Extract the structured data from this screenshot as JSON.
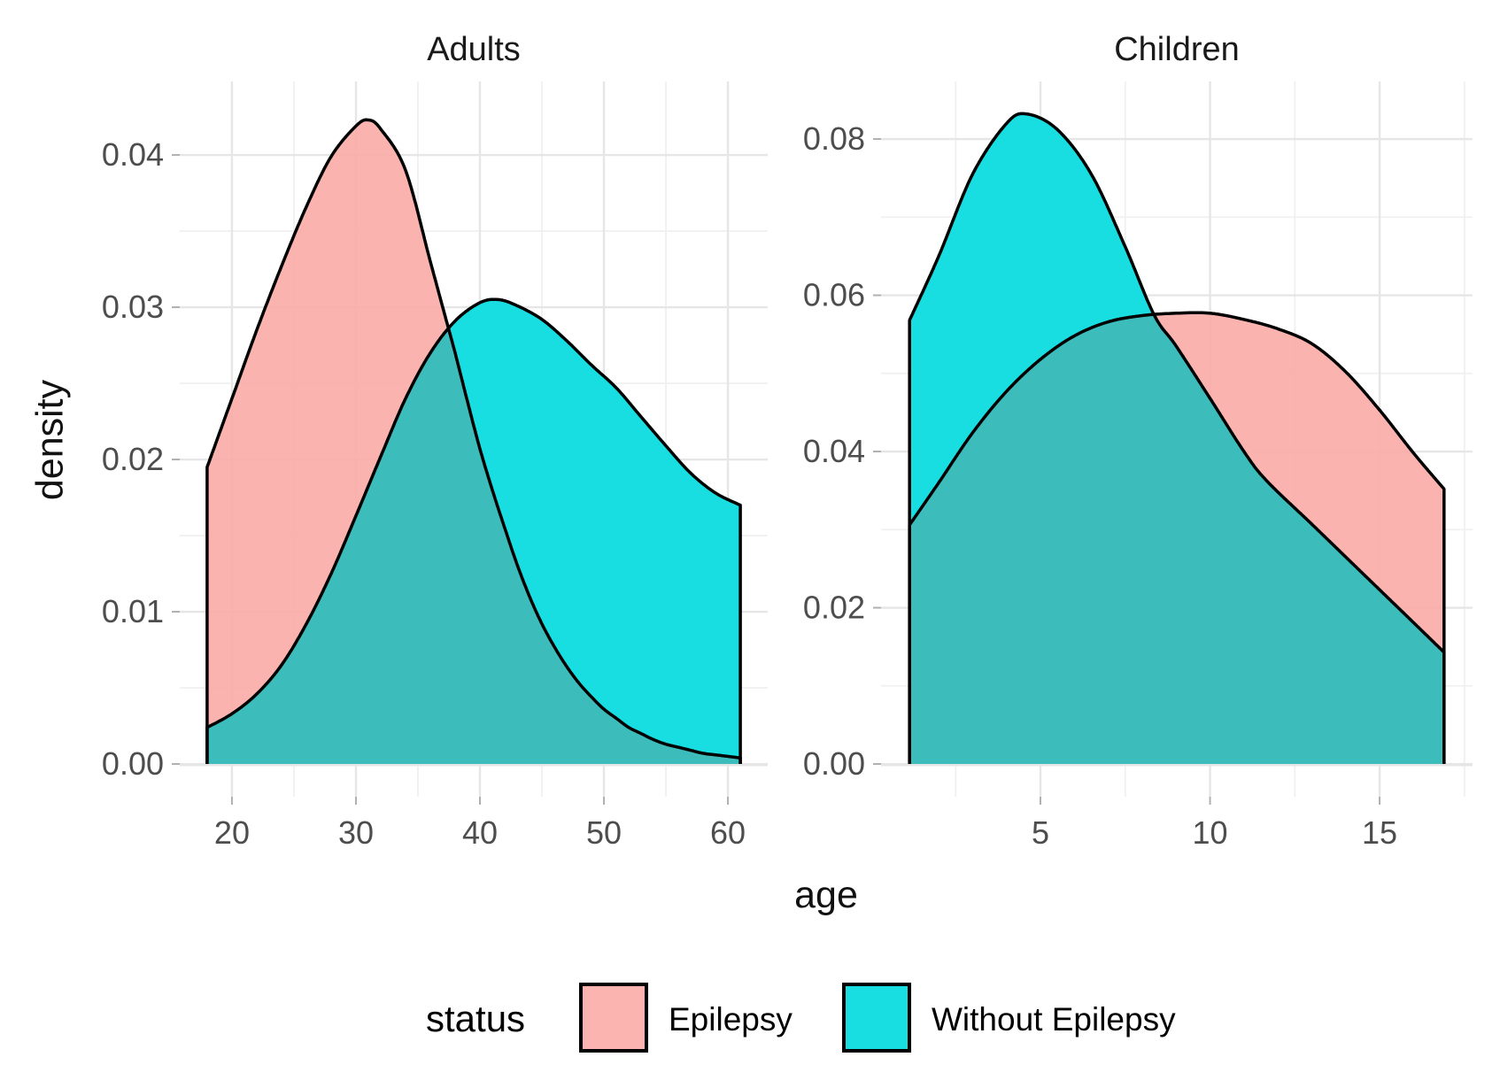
{
  "chart_data": {
    "type": "area",
    "subtype": "faceted-density-plot",
    "xlabel": "age",
    "ylabel": "density",
    "grid": true,
    "legend": {
      "title": "status",
      "position": "bottom",
      "entries": [
        {
          "label": "Epilepsy",
          "fill": "#FBB4AF"
        },
        {
          "label": "Without Epilepsy",
          "fill": "#18DEE2"
        }
      ]
    },
    "style": {
      "fill_epilepsy": "#FAADA8",
      "fill_epilepsy_opacity": 0.92,
      "fill_without": "#18DEE2",
      "fill_overlap": "#41B8B8",
      "fill_overlap_opacity": 0.92,
      "curve_stroke": "#000000",
      "curve_stroke_width": 3.5,
      "grid_major": "#E6E6E6",
      "grid_minor": "#F0F0F0",
      "tick_mark": "#B0B0B0",
      "tick_label_color": "#4D4D4D",
      "background": "#FFFFFF"
    },
    "panels": [
      {
        "title": "Adults",
        "xlim": [
          15.79,
          63.21
        ],
        "ylim": [
          -0.00215,
          0.04483
        ],
        "x_major_ticks": [
          20,
          30,
          40,
          50,
          60
        ],
        "x_tick_labels": [
          "20",
          "30",
          "40",
          "50",
          "60"
        ],
        "x_minor_ticks": [
          25,
          35,
          45,
          55
        ],
        "y_major_ticks": [
          0,
          0.01,
          0.02,
          0.03,
          0.04
        ],
        "y_tick_labels": [
          "0.00",
          "0.01",
          "0.02",
          "0.03",
          "0.04"
        ],
        "y_minor_ticks": [
          0.005,
          0.015,
          0.025,
          0.035
        ],
        "series": [
          {
            "name": "Epilepsy",
            "x": [
              18,
              20,
              22,
              24,
              26,
              28,
              30,
              31,
              32,
              34,
              36,
              37.4,
              38,
              39,
              40,
              41,
              42,
              43,
              44,
              45,
              46,
              47,
              48,
              49,
              50,
              51,
              52,
              53,
              54,
              55,
              56,
              57,
              58,
              59,
              60,
              61
            ],
            "density": [
              0.0195,
              0.024,
              0.0285,
              0.0327,
              0.0366,
              0.0399,
              0.0419,
              0.0423,
              0.0417,
              0.039,
              0.033,
              0.0288,
              0.027,
              0.0238,
              0.0207,
              0.018,
              0.0155,
              0.0131,
              0.011,
              0.0092,
              0.0077,
              0.0064,
              0.0053,
              0.0044,
              0.0036,
              0.003,
              0.0024,
              0.002,
              0.0016,
              0.0013,
              0.0011,
              0.0009,
              0.0007,
              0.0006,
              0.0005,
              0.0004
            ]
          },
          {
            "name": "Without Epilepsy",
            "x": [
              18,
              20,
              22,
              24,
              26,
              28,
              30,
              32,
              34,
              36,
              38,
              40,
              41.5,
              43,
              45,
              47,
              49,
              51,
              53,
              55,
              57,
              59,
              61
            ],
            "density": [
              0.0024,
              0.0033,
              0.0046,
              0.0065,
              0.0092,
              0.0125,
              0.0163,
              0.0202,
              0.024,
              0.027,
              0.0291,
              0.0303,
              0.0305,
              0.0301,
              0.0292,
              0.0278,
              0.0262,
              0.0247,
              0.0228,
              0.0209,
              0.0191,
              0.0178,
              0.017
            ]
          }
        ]
      },
      {
        "title": "Children",
        "xlim": [
          0.3,
          17.74
        ],
        "ylim": [
          -0.00419,
          0.08737
        ],
        "x_major_ticks": [
          5,
          10,
          15
        ],
        "x_tick_labels": [
          "5",
          "10",
          "15"
        ],
        "x_minor_ticks": [
          2.5,
          7.5,
          12.5,
          17.5
        ],
        "y_major_ticks": [
          0,
          0.02,
          0.04,
          0.06,
          0.08
        ],
        "y_tick_labels": [
          "0.00",
          "0.02",
          "0.04",
          "0.06",
          "0.08"
        ],
        "y_minor_ticks": [
          0.01,
          0.03,
          0.05,
          0.07
        ],
        "series": [
          {
            "name": "Epilepsy",
            "x": [
              1.14,
              2,
              3,
              4,
              5,
              6,
              7,
              8,
              9,
              10,
              11,
              12,
              13,
              14,
              15,
              16,
              16.9
            ],
            "density": [
              0.0306,
              0.036,
              0.0424,
              0.0477,
              0.0518,
              0.0548,
              0.0566,
              0.0574,
              0.0577,
              0.0577,
              0.0569,
              0.0557,
              0.0538,
              0.0502,
              0.0453,
              0.0398,
              0.0352
            ]
          },
          {
            "name": "Without Epilepsy",
            "x": [
              1.14,
              2,
              3,
              4,
              4.6,
              5.5,
              6.5,
              7.5,
              8.35,
              9,
              10,
              11,
              11.66,
              13,
              14,
              15,
              16,
              16.9
            ],
            "density": [
              0.0568,
              0.065,
              0.0755,
              0.082,
              0.0832,
              0.0812,
              0.0755,
              0.0662,
              0.0575,
              0.0535,
              0.0468,
              0.04,
              0.0363,
              0.0307,
              0.0265,
              0.0223,
              0.0181,
              0.0143
            ]
          }
        ]
      }
    ]
  }
}
